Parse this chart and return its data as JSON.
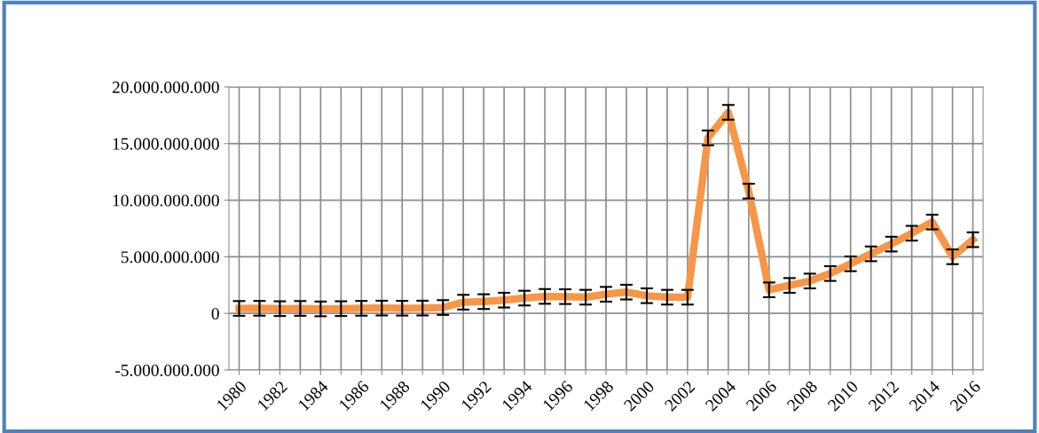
{
  "chart_data": {
    "type": "line",
    "categories": [
      "1980",
      null,
      "1982",
      null,
      "1984",
      null,
      "1986",
      null,
      "1988",
      null,
      "1990",
      null,
      "1992",
      null,
      "1994",
      null,
      "1996",
      null,
      "1998",
      null,
      "2000",
      null,
      "2002",
      null,
      "2004",
      null,
      "2006",
      null,
      "2008",
      null,
      "2010",
      null,
      "2012",
      null,
      "2014",
      null,
      "2016"
    ],
    "series": [
      {
        "color": "#f79646",
        "values": [
          440000000,
          450000000,
          420000000,
          440000000,
          400000000,
          420000000,
          450000000,
          470000000,
          460000000,
          470000000,
          520000000,
          990000000,
          1040000000,
          1170000000,
          1350000000,
          1500000000,
          1480000000,
          1430000000,
          1690000000,
          1880000000,
          1560000000,
          1430000000,
          1430000000,
          15500000000,
          17760000000,
          10800000000,
          2080000000,
          2470000000,
          2860000000,
          3520000000,
          4380000000,
          5260000000,
          6120000000,
          7080000000,
          8070000000,
          5000000000,
          6510000000
        ],
        "errors": [
          650000000,
          650000000,
          650000000,
          650000000,
          650000000,
          650000000,
          650000000,
          650000000,
          650000000,
          650000000,
          650000000,
          650000000,
          650000000,
          650000000,
          650000000,
          650000000,
          650000000,
          650000000,
          650000000,
          650000000,
          650000000,
          650000000,
          650000000,
          650000000,
          650000000,
          650000000,
          650000000,
          650000000,
          650000000,
          650000000,
          650000000,
          650000000,
          650000000,
          650000000,
          650000000,
          650000000,
          650000000
        ]
      }
    ],
    "ylim": [
      -5000000000,
      20000000000
    ],
    "yticks": [
      {
        "value": -5000000000,
        "label": "-5.000.000.000"
      },
      {
        "value": 0,
        "label": "0"
      },
      {
        "value": 5000000000,
        "label": "5.000.000.000"
      },
      {
        "value": 10000000000,
        "label": "10.000.000.000"
      },
      {
        "value": 15000000000,
        "label": "15.000.000.000"
      },
      {
        "value": 20000000000,
        "label": "20.000.000.000"
      }
    ],
    "grid": true,
    "marker": "none",
    "line_style": "solid"
  }
}
